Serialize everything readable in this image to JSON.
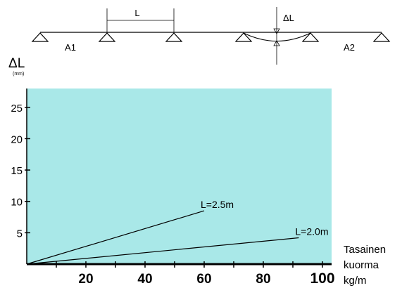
{
  "diagram": {
    "span_label": "L",
    "deflection_label": "ΔL",
    "left_section": "A1",
    "right_section": "A2"
  },
  "chart_data": {
    "type": "line",
    "title": "",
    "ylabel": "ΔL",
    "yunit": "(mm)",
    "xlabel_lines": [
      "Tasainen",
      "kuorma",
      "kg/m"
    ],
    "xlim": [
      0,
      100
    ],
    "ylim": [
      0,
      28
    ],
    "xticks": [
      20,
      40,
      60,
      80,
      100
    ],
    "yticks": [
      5,
      10,
      15,
      20,
      25
    ],
    "background": "#a9e8e8",
    "series": [
      {
        "name": "L=2.5m",
        "x": [
          0,
          60
        ],
        "y": [
          0,
          8.5
        ],
        "color": "#000000"
      },
      {
        "name": "L=2.0m",
        "x": [
          0,
          92
        ],
        "y": [
          0,
          4.2
        ],
        "color": "#000000"
      }
    ]
  }
}
